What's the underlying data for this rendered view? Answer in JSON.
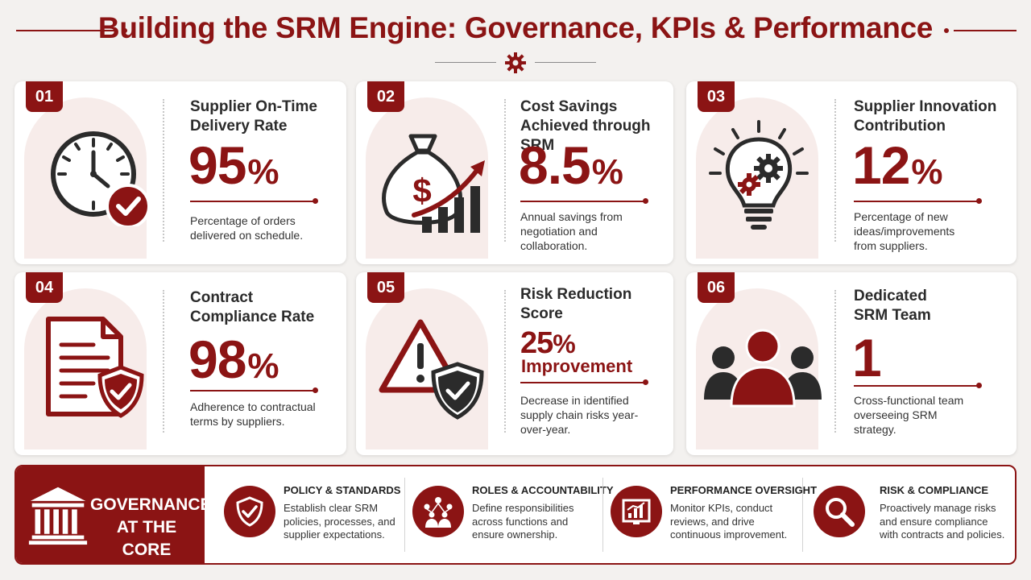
{
  "header": {
    "title": "Building the SRM Engine: Governance, KPIs & Performance",
    "divider_icon": "gear-icon"
  },
  "colors": {
    "accent": "#8b1414",
    "dark": "#2b2b2b",
    "tint": "#f7ecea"
  },
  "cards": [
    {
      "number": "01",
      "title": "Supplier On-Time\nDelivery Rate",
      "value": "95",
      "unit": "%",
      "description": "Percentage of orders delivered on schedule.",
      "icon": "clock-check-icon"
    },
    {
      "number": "02",
      "title": "Cost Savings\nAchieved through SRM",
      "value": "8.5",
      "unit": "%",
      "description": "Annual savings from negotiation and collaboration.",
      "icon": "money-bag-growth-icon"
    },
    {
      "number": "03",
      "title": "Supplier Innovation\nContribution",
      "value": "12",
      "unit": "%",
      "description": "Percentage of new ideas/improvements from suppliers.",
      "icon": "lightbulb-gears-icon"
    },
    {
      "number": "04",
      "title": "Contract\nCompliance Rate",
      "value": "98",
      "unit": "%",
      "description": "Adherence to contractual terms by suppliers.",
      "icon": "document-shield-icon"
    },
    {
      "number": "05",
      "title": "Risk Reduction\nScore",
      "value": "25",
      "unit": "%",
      "value_suffix": "Improvement",
      "description": "Decrease in identified supply chain risks year-over-year.",
      "icon": "warning-shield-icon"
    },
    {
      "number": "06",
      "title": "Dedicated\nSRM Team",
      "value": "1",
      "unit": "",
      "description": "Cross-functional team overseeing SRM strategy.",
      "icon": "team-icon"
    }
  ],
  "governance": {
    "title": "GOVERNANCE\nAT THE CORE",
    "icon": "institution-icon",
    "items": [
      {
        "heading": "POLICY & STANDARDS",
        "text": "Establish clear SRM policies, processes, and supplier expectations.",
        "icon": "shield-check-icon"
      },
      {
        "heading": "ROLES & ACCOUNTABILITY",
        "text": "Define responsibilities across functions and ensure ownership.",
        "icon": "people-network-icon"
      },
      {
        "heading": "PERFORMANCE OVERSIGHT",
        "text": "Monitor KPIs, conduct reviews, and drive continuous improvement.",
        "icon": "dashboard-chart-icon"
      },
      {
        "heading": "RISK & COMPLIANCE",
        "text": "Proactively manage risks and ensure compliance with contracts and policies.",
        "icon": "magnifier-icon"
      }
    ]
  }
}
